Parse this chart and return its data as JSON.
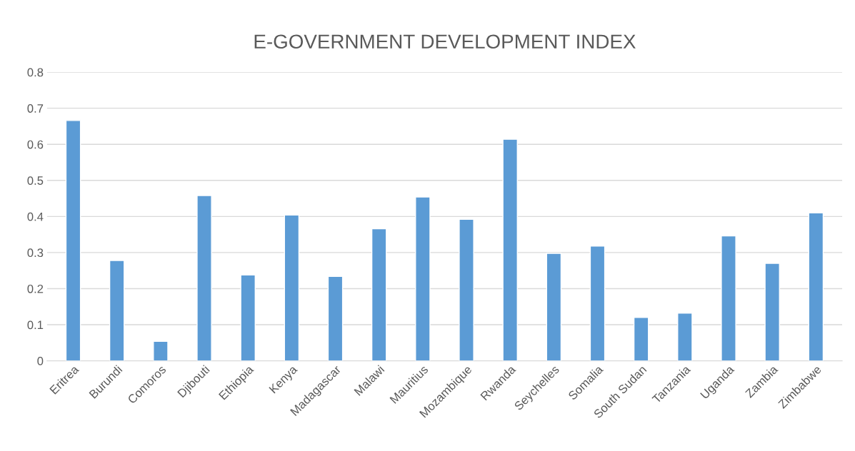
{
  "chart_data": {
    "type": "bar",
    "title": "E-GOVERNMENT DEVELOPMENT INDEX",
    "categories": [
      "Eritrea",
      "Burundi",
      "Comoros",
      "Djibouti",
      "Ethiopia",
      "Kenya",
      "Madagascar",
      "Malawi",
      "Mauritius",
      "Mozambique",
      "Rwanda",
      "Seychelles",
      "Somalia",
      "South Sudan",
      "Tanzania",
      "Uganda",
      "Zambia",
      "Zimbabwe"
    ],
    "values": [
      0.666,
      0.278,
      0.054,
      0.458,
      0.238,
      0.404,
      0.234,
      0.366,
      0.454,
      0.392,
      0.614,
      0.298,
      0.318,
      0.12,
      0.132,
      0.346,
      0.27,
      0.41
    ],
    "color": "#5b9bd5",
    "ylim": [
      0,
      0.8
    ],
    "yticks": [
      0,
      0.1,
      0.2,
      0.3,
      0.4,
      0.5,
      0.6,
      0.7,
      0.8
    ],
    "grid": "y",
    "legend": false
  }
}
